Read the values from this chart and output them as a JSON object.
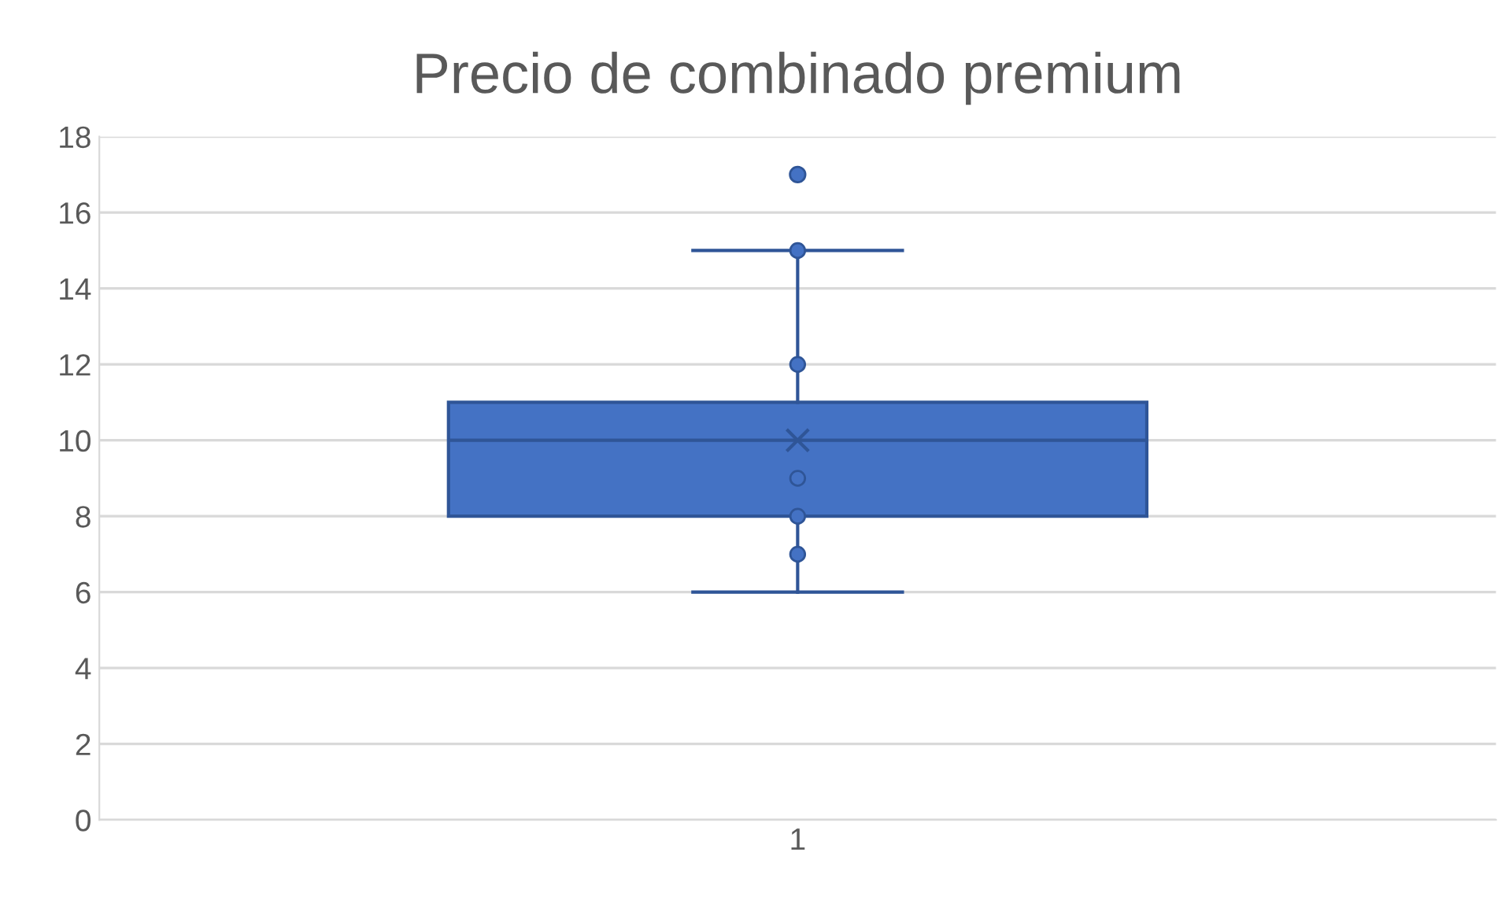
{
  "chart_data": {
    "type": "box",
    "title": "Precio de combinado premium",
    "categories": [
      "1"
    ],
    "color": "#4472c4",
    "boxes": [
      {
        "low": 6,
        "q1": 8,
        "median": 10,
        "q3": 11,
        "high": 15,
        "mean": 10,
        "outliers": [
          17
        ]
      }
    ],
    "series": [
      {
        "type": "scatter",
        "color": "#4472c4",
        "x": [
          "1",
          "1",
          "1",
          "1",
          "1"
        ],
        "values": [
          7,
          8,
          9,
          12,
          15
        ]
      }
    ],
    "ylim": [
      0,
      18
    ],
    "yticks": [
      0,
      2,
      4,
      6,
      8,
      10,
      12,
      14,
      16,
      18
    ],
    "grid": "y",
    "marker": "circle"
  }
}
